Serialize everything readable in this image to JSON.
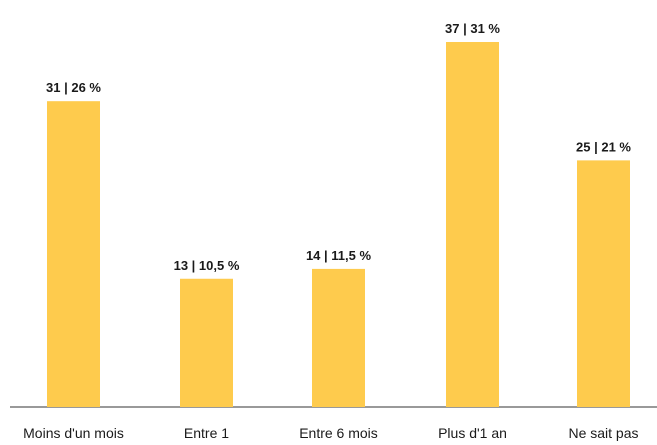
{
  "chart_data": {
    "type": "bar",
    "categories": [
      "Moins d'un mois",
      "Entre 1",
      "Entre 6 mois",
      "Plus d'1 an",
      "Ne sait pas"
    ],
    "values": [
      31,
      13,
      14,
      37,
      25
    ],
    "percentages": [
      26,
      10.5,
      11.5,
      31,
      21
    ],
    "data_labels": [
      "31 | 26 %",
      "13 | 10,5 %",
      "14 | 11,5 %",
      "37 | 31 %",
      "25 | 21 %"
    ],
    "title": "",
    "xlabel": "",
    "ylabel": "",
    "ylim": [
      0,
      37
    ],
    "grid": false,
    "legend": "none",
    "bar_color": "#FECB4D",
    "axis_color": "#333333"
  }
}
